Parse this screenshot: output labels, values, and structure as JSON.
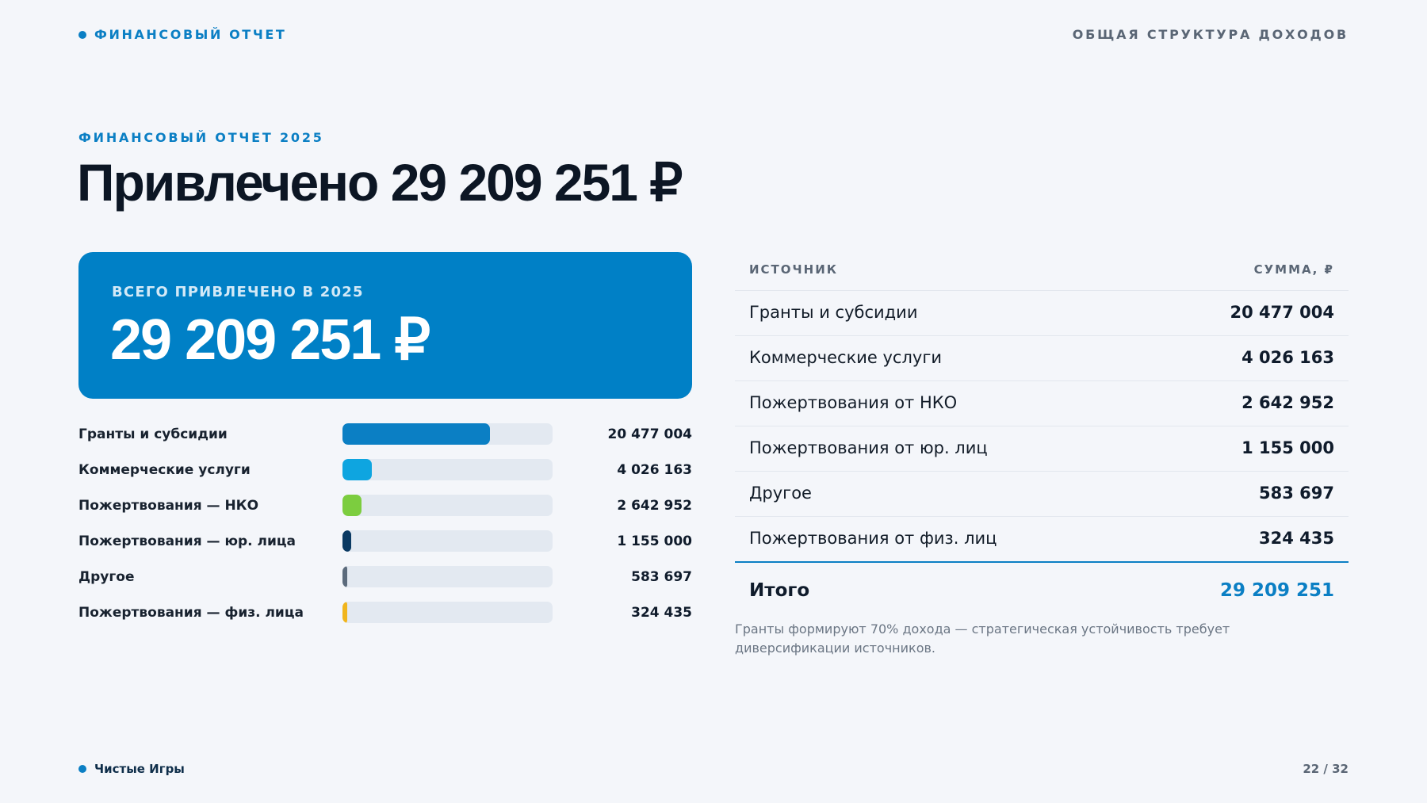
{
  "header": {
    "brand": "ФИНАНСОВЫЙ ОТЧЕТ",
    "section": "ОБЩАЯ СТРУКТУРА ДОХОДОВ"
  },
  "intro": {
    "eyebrow": "ФИНАНСОВЫЙ ОТЧЕТ 2025",
    "headline": "Привлечено 29 209 251 ₽"
  },
  "total_card": {
    "label": "ВСЕГО ПРИВЛЕЧЕНО В 2025",
    "value": "29 209 251 ₽"
  },
  "bars": [
    {
      "label": "Гранты и субсидии",
      "value_text": "20 477 004",
      "share": 0.701,
      "color": "#0b7fc4"
    },
    {
      "label": "Коммерческие услуги",
      "value_text": "4 026 163",
      "share": 0.138,
      "color": "#0ea5e0"
    },
    {
      "label": "Пожертвования — НКО",
      "value_text": "2 642 952",
      "share": 0.09,
      "color": "#7ccd3f"
    },
    {
      "label": "Пожертвования — юр. лица",
      "value_text": "1 155 000",
      "share": 0.04,
      "color": "#0b3a63"
    },
    {
      "label": "Другое",
      "value_text": "583 697",
      "share": 0.02,
      "color": "#5c6b7c"
    },
    {
      "label": "Пожертвования — физ. лица",
      "value_text": "324 435",
      "share": 0.011,
      "color": "#f1b51c"
    }
  ],
  "table": {
    "col_source": "ИСТОЧНИК",
    "col_amount": "СУММА, ₽",
    "rows": [
      {
        "name": "Гранты и субсидии",
        "amount": "20 477 004"
      },
      {
        "name": "Коммерческие услуги",
        "amount": "4 026 163"
      },
      {
        "name": "Пожертвования от НКО",
        "amount": "2 642 952"
      },
      {
        "name": "Пожертвования от юр. лиц",
        "amount": "1 155 000"
      },
      {
        "name": "Другое",
        "amount": "583 697"
      },
      {
        "name": "Пожертвования от физ. лиц",
        "amount": "324 435"
      }
    ],
    "total_label": "Итого",
    "total_value": "29 209 251"
  },
  "note": "Гранты формируют 70% дохода — стратегическая устойчивость требует диверсификации источников.",
  "footer": {
    "brand": "Чистые Игры",
    "page": "22 / 32"
  }
}
